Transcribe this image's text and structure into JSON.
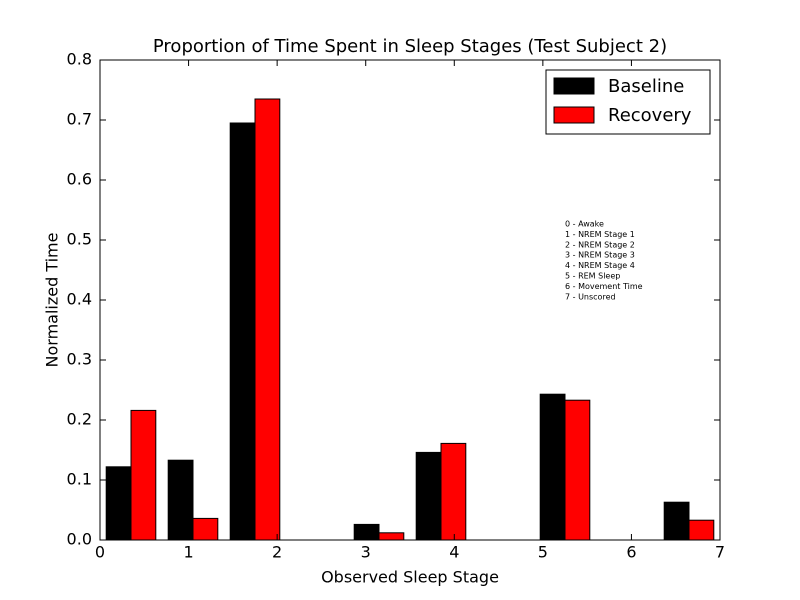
{
  "chart_data": {
    "type": "bar",
    "title": "Proportion of Time Spent in Sleep Stages (Test Subject 2)",
    "xlabel": "Observed Sleep Stage",
    "ylabel": "Normalized Time",
    "x": [
      0.35,
      1.05,
      1.75,
      2.45,
      3.15,
      3.85,
      4.55,
      5.25,
      5.95,
      6.65
    ],
    "series": [
      {
        "name": "Baseline",
        "color": "#000000",
        "values": [
          0.122,
          0.133,
          0.695,
          0,
          0.026,
          0.146,
          0,
          0.243,
          0,
          0.063
        ]
      },
      {
        "name": "Recovery",
        "color": "#ff0000",
        "values": [
          0.216,
          0.036,
          0.735,
          0,
          0.012,
          0.161,
          0,
          0.233,
          0,
          0.033
        ]
      }
    ],
    "xlim": [
      0,
      7
    ],
    "xticks": [
      0,
      1,
      2,
      3,
      4,
      5,
      6,
      7
    ],
    "ylim": [
      0,
      0.8
    ],
    "yticks": [
      {
        "value": 0,
        "label": "0.0"
      },
      0.1,
      0.2,
      0.3,
      0.4,
      0.5,
      0.6,
      0.7,
      0.8
    ],
    "legend": "upper right",
    "annotation": [
      "0 - Awake",
      "1 - NREM Stage 1",
      "2 - NREM Stage 2",
      "3 - NREM Stage 3",
      "4 - NREM Stage 4",
      "5 - REM Sleep",
      "6 - Movement Time",
      "7 - Unscored"
    ]
  }
}
